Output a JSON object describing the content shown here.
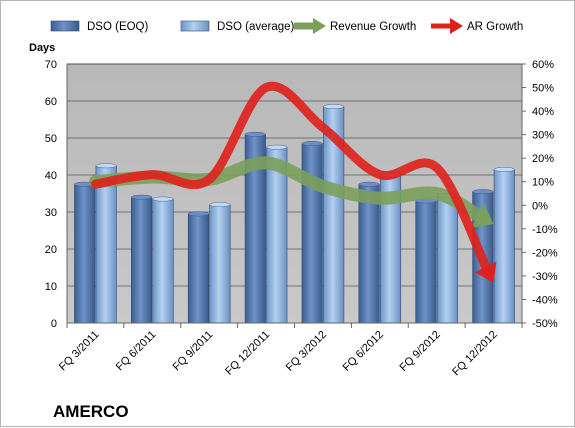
{
  "chart_data": {
    "type": "bar",
    "title": "",
    "company_label": "AMERCO",
    "categories": [
      "FQ 3/2011",
      "FQ 6/2011",
      "FQ 9/2011",
      "FQ 12/2011",
      "FQ 3/2012",
      "FQ 6/2012",
      "FQ 9/2012",
      "FQ 12/2012"
    ],
    "ylabel": "Days",
    "ylim": [
      0,
      70
    ],
    "y_ticks": [
      "0",
      "10",
      "20",
      "30",
      "40",
      "50",
      "60",
      "70"
    ],
    "y2lim": [
      -50,
      60
    ],
    "y2_ticks": [
      "-50%",
      "-40%",
      "-30%",
      "-20%",
      "-10%",
      "0%",
      "10%",
      "20%",
      "30%",
      "40%",
      "50%",
      "60%"
    ],
    "series": [
      {
        "name": "DSO (EOQ)",
        "type": "bar",
        "axis": "left",
        "color": "#4a6fa5",
        "values": [
          37.5,
          34,
          29.5,
          51,
          48.5,
          37.5,
          33,
          35.5
        ]
      },
      {
        "name": "DSO (average)",
        "type": "bar",
        "axis": "left",
        "color": "#8fb4e3",
        "values": [
          42.5,
          33.5,
          32,
          47.5,
          58.5,
          40,
          34.5,
          41.5
        ]
      },
      {
        "name": "Revenue Growth",
        "type": "line-arrow",
        "axis": "right",
        "color": "#7ba05b",
        "values": [
          10,
          12,
          11,
          18,
          8,
          3,
          5,
          -8
        ]
      },
      {
        "name": "AR Growth",
        "type": "line-arrow",
        "axis": "right",
        "color": "#e0201b",
        "values": [
          9,
          13,
          11,
          50,
          33,
          13,
          16,
          -33
        ]
      }
    ],
    "legend_position": "top",
    "grid": true,
    "plot_background": "#c0c0c0"
  }
}
